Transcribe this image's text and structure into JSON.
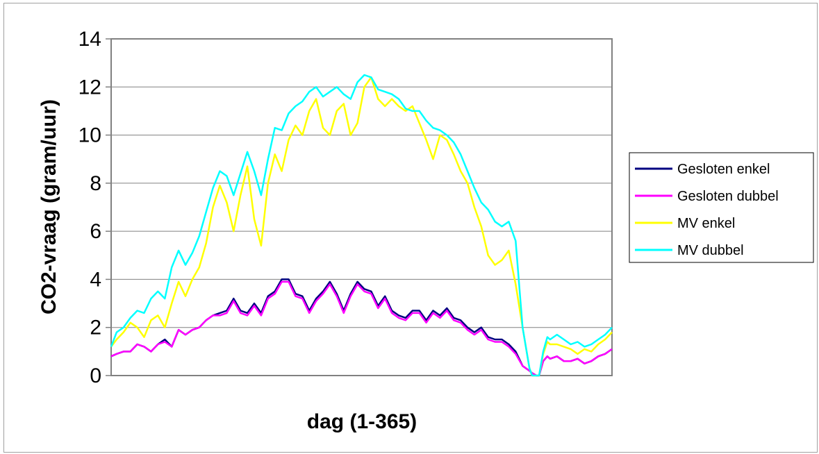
{
  "chart_data": {
    "type": "line",
    "xlabel": "dag (1-365)",
    "ylabel": "CO2-vraag (gram/uur)",
    "xlim": [
      1,
      365
    ],
    "ylim": [
      0,
      14
    ],
    "y_ticks": [
      0,
      2,
      4,
      6,
      8,
      10,
      12,
      14
    ],
    "grid": "horizontal",
    "legend_position": "right",
    "series": [
      {
        "name": "Gesloten enkel",
        "color": "#000080",
        "x": [
          1,
          5,
          10,
          15,
          20,
          25,
          30,
          35,
          40,
          45,
          50,
          55,
          60,
          65,
          70,
          75,
          80,
          85,
          90,
          95,
          100,
          105,
          110,
          115,
          120,
          125,
          130,
          135,
          140,
          145,
          150,
          155,
          160,
          165,
          170,
          175,
          180,
          185,
          190,
          195,
          200,
          205,
          210,
          215,
          220,
          225,
          230,
          235,
          240,
          245,
          250,
          255,
          260,
          265,
          270,
          275,
          280,
          285,
          290,
          295,
          300,
          305,
          307,
          310,
          312,
          315,
          318,
          320,
          325,
          330,
          335,
          340,
          345,
          350,
          355,
          360,
          365
        ],
        "values": [
          0.8,
          0.9,
          1.0,
          1.0,
          1.3,
          1.2,
          1.0,
          1.3,
          1.5,
          1.2,
          1.9,
          1.7,
          1.9,
          2.0,
          2.3,
          2.5,
          2.6,
          2.7,
          3.2,
          2.7,
          2.6,
          3.0,
          2.6,
          3.3,
          3.5,
          4.0,
          4.0,
          3.4,
          3.3,
          2.7,
          3.2,
          3.5,
          3.9,
          3.4,
          2.7,
          3.4,
          3.9,
          3.6,
          3.5,
          2.9,
          3.3,
          2.7,
          2.5,
          2.4,
          2.7,
          2.7,
          2.3,
          2.7,
          2.5,
          2.8,
          2.4,
          2.3,
          2.0,
          1.8,
          2.0,
          1.6,
          1.5,
          1.5,
          1.3,
          1.0,
          0.4,
          0.2,
          0.1,
          0.0,
          0.0,
          0.6,
          0.8,
          0.7,
          0.8,
          0.6,
          0.6,
          0.7,
          0.5,
          0.6,
          0.8,
          0.9,
          1.1
        ]
      },
      {
        "name": "Gesloten dubbel",
        "color": "#ff00ff",
        "x": [
          1,
          5,
          10,
          15,
          20,
          25,
          30,
          35,
          40,
          45,
          50,
          55,
          60,
          65,
          70,
          75,
          80,
          85,
          90,
          95,
          100,
          105,
          110,
          115,
          120,
          125,
          130,
          135,
          140,
          145,
          150,
          155,
          160,
          165,
          170,
          175,
          180,
          185,
          190,
          195,
          200,
          205,
          210,
          215,
          220,
          225,
          230,
          235,
          240,
          245,
          250,
          255,
          260,
          265,
          270,
          275,
          280,
          285,
          290,
          295,
          300,
          305,
          307,
          310,
          312,
          315,
          318,
          320,
          325,
          330,
          335,
          340,
          345,
          350,
          355,
          360,
          365
        ],
        "values": [
          0.8,
          0.9,
          1.0,
          1.0,
          1.3,
          1.2,
          1.0,
          1.3,
          1.4,
          1.2,
          1.9,
          1.7,
          1.9,
          2.0,
          2.3,
          2.5,
          2.5,
          2.6,
          3.1,
          2.6,
          2.5,
          2.9,
          2.5,
          3.2,
          3.4,
          3.9,
          3.9,
          3.3,
          3.2,
          2.6,
          3.1,
          3.4,
          3.8,
          3.3,
          2.6,
          3.3,
          3.8,
          3.5,
          3.4,
          2.8,
          3.2,
          2.6,
          2.4,
          2.3,
          2.6,
          2.6,
          2.2,
          2.6,
          2.4,
          2.7,
          2.3,
          2.2,
          1.9,
          1.7,
          1.9,
          1.5,
          1.4,
          1.4,
          1.2,
          0.9,
          0.4,
          0.2,
          0.1,
          0.0,
          0.0,
          0.6,
          0.8,
          0.7,
          0.8,
          0.6,
          0.6,
          0.7,
          0.5,
          0.6,
          0.8,
          0.9,
          1.1
        ]
      },
      {
        "name": "MV enkel",
        "color": "#ffff00",
        "x": [
          1,
          5,
          10,
          15,
          20,
          25,
          30,
          35,
          40,
          45,
          50,
          55,
          60,
          65,
          70,
          75,
          80,
          85,
          90,
          95,
          100,
          105,
          110,
          115,
          120,
          125,
          130,
          135,
          140,
          145,
          150,
          155,
          160,
          165,
          170,
          175,
          180,
          185,
          190,
          195,
          200,
          205,
          210,
          215,
          220,
          225,
          230,
          235,
          240,
          245,
          250,
          255,
          260,
          265,
          270,
          275,
          280,
          285,
          290,
          295,
          300,
          305,
          307,
          310,
          312,
          315,
          318,
          320,
          325,
          330,
          335,
          340,
          345,
          350,
          355,
          360,
          365
        ],
        "values": [
          1.2,
          1.5,
          1.8,
          2.2,
          2.0,
          1.6,
          2.3,
          2.5,
          2.0,
          3.0,
          3.9,
          3.3,
          4.0,
          4.5,
          5.5,
          7.0,
          7.9,
          7.2,
          6.0,
          7.5,
          8.7,
          6.5,
          5.4,
          8.0,
          9.2,
          8.5,
          9.8,
          10.4,
          10.0,
          11.0,
          11.5,
          10.3,
          10.0,
          11.0,
          11.3,
          10.0,
          10.5,
          12.0,
          12.4,
          11.5,
          11.2,
          11.5,
          11.2,
          11.0,
          11.2,
          10.5,
          9.8,
          9.0,
          10.0,
          9.8,
          9.2,
          8.5,
          8.0,
          7.0,
          6.2,
          5.0,
          4.6,
          4.8,
          5.2,
          3.8,
          2.0,
          0.3,
          0.0,
          0.0,
          0.0,
          0.9,
          1.4,
          1.3,
          1.3,
          1.2,
          1.1,
          0.9,
          1.1,
          1.0,
          1.3,
          1.5,
          1.8
        ]
      },
      {
        "name": "MV dubbel",
        "color": "#00ffff",
        "x": [
          1,
          5,
          10,
          15,
          20,
          25,
          30,
          35,
          40,
          45,
          50,
          55,
          60,
          65,
          70,
          75,
          80,
          85,
          90,
          95,
          100,
          105,
          110,
          115,
          120,
          125,
          130,
          135,
          140,
          145,
          150,
          155,
          160,
          165,
          170,
          175,
          180,
          185,
          190,
          195,
          200,
          205,
          210,
          215,
          220,
          225,
          230,
          235,
          240,
          245,
          250,
          255,
          260,
          265,
          270,
          275,
          280,
          285,
          290,
          295,
          300,
          305,
          307,
          310,
          312,
          315,
          318,
          320,
          325,
          330,
          335,
          340,
          345,
          350,
          355,
          360,
          365
        ],
        "values": [
          1.2,
          1.8,
          2.0,
          2.4,
          2.7,
          2.6,
          3.2,
          3.5,
          3.2,
          4.5,
          5.2,
          4.6,
          5.1,
          5.8,
          6.8,
          7.8,
          8.5,
          8.3,
          7.5,
          8.4,
          9.3,
          8.5,
          7.5,
          9.0,
          10.3,
          10.2,
          10.9,
          11.2,
          11.4,
          11.8,
          12.0,
          11.6,
          11.8,
          12.0,
          11.7,
          11.5,
          12.2,
          12.5,
          12.4,
          11.9,
          11.8,
          11.7,
          11.5,
          11.1,
          11.0,
          11.0,
          10.6,
          10.3,
          10.2,
          10.0,
          9.7,
          9.2,
          8.5,
          7.8,
          7.2,
          6.9,
          6.4,
          6.2,
          6.4,
          5.6,
          2.0,
          0.3,
          0.0,
          0.0,
          0.0,
          1.0,
          1.6,
          1.5,
          1.7,
          1.5,
          1.3,
          1.4,
          1.2,
          1.3,
          1.5,
          1.7,
          2.0
        ]
      }
    ]
  }
}
